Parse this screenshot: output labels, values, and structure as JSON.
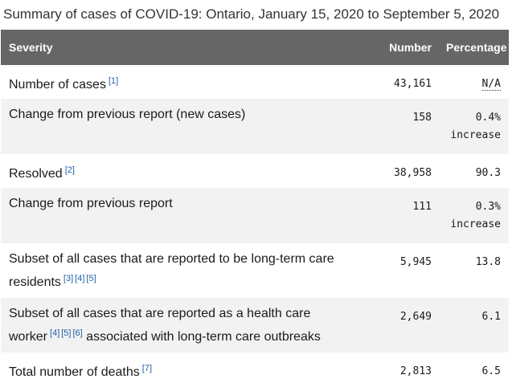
{
  "caption": "Summary of cases of COVID-19: Ontario, January 15, 2020 to September 5, 2020",
  "header": {
    "severity": "Severity",
    "number": "Number",
    "percentage": "Percentage"
  },
  "rows": [
    {
      "label": "Number of cases",
      "refs": [
        "[1]"
      ],
      "number": "43,161",
      "pct": "N/A",
      "pct2": ""
    },
    {
      "label": "Change from previous report (new cases)",
      "refs": [],
      "number": "158",
      "pct": "0.4%",
      "pct2": "increase"
    },
    {
      "label": "Resolved",
      "refs": [
        "[2]"
      ],
      "number": "38,958",
      "pct": "90.3",
      "pct2": ""
    },
    {
      "label": "Change from previous report",
      "refs": [],
      "number": "111",
      "pct": "0.3%",
      "pct2": "increase"
    },
    {
      "label_a": "Subset of all cases that are reported to be long-term care",
      "label_b": "residents",
      "refs": [
        "[3]",
        "[4]",
        "[5]"
      ],
      "number": "5,945",
      "pct": "13.8",
      "pct2": ""
    },
    {
      "label_a": "Subset of all cases that are reported as a health care",
      "label_b": "worker",
      "refs": [
        "[4]",
        "[5]",
        "[6]"
      ],
      "label_c": " associated with long-term care outbreaks",
      "number": "2,649",
      "pct": "6.1",
      "pct2": ""
    },
    {
      "label": "Total number of deaths",
      "refs": [
        "[7]"
      ],
      "number": "2,813",
      "pct": "6.5",
      "pct2": ""
    }
  ]
}
